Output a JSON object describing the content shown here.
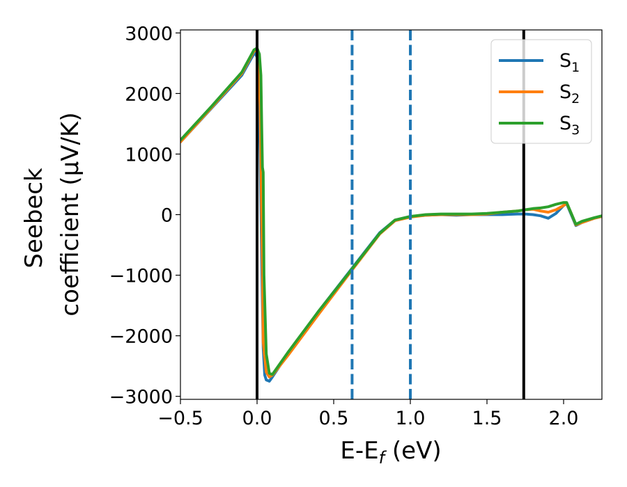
{
  "chart_data": {
    "type": "line",
    "xlabel": "E-E_f (eV)",
    "xlabel_parts": {
      "main": "E-E",
      "sub": "f",
      "rest": " (eV)"
    },
    "ylabel_lines": [
      "Seebeck",
      "coefficient  (μV/K)"
    ],
    "xlim": [
      -0.5,
      2.25
    ],
    "ylim": [
      -3050,
      3050
    ],
    "xticks": [
      -0.5,
      0.0,
      0.5,
      1.0,
      1.5,
      2.0
    ],
    "xtick_labels": [
      "−0.5",
      "0.0",
      "0.5",
      "1.0",
      "1.5",
      "2.0"
    ],
    "yticks": [
      -3000,
      -2000,
      -1000,
      0,
      1000,
      2000,
      3000
    ],
    "ytick_labels": [
      "−3000",
      "−2000",
      "−1000",
      "0",
      "1000",
      "2000",
      "3000"
    ],
    "legend_position": "top-right",
    "grid": false,
    "vlines": [
      {
        "x": 0.0,
        "color": "#000000",
        "style": "solid"
      },
      {
        "x": 0.62,
        "color": "#1f77b4",
        "style": "dashed"
      },
      {
        "x": 1.0,
        "color": "#1f77b4",
        "style": "dashed"
      },
      {
        "x": 1.74,
        "color": "#000000",
        "style": "solid"
      }
    ],
    "series": [
      {
        "name": "S",
        "name_sub": "1",
        "color": "#1f77b4",
        "x": [
          -0.5,
          -0.3,
          -0.1,
          -0.04,
          -0.015,
          0.0,
          0.01,
          0.02,
          0.03,
          0.04,
          0.05,
          0.06,
          0.08,
          0.1,
          0.2,
          0.4,
          0.6,
          0.8,
          0.9,
          1.0,
          1.1,
          1.2,
          1.3,
          1.4,
          1.5,
          1.6,
          1.7,
          1.75,
          1.8,
          1.85,
          1.9,
          1.95,
          2.0,
          2.02,
          2.05,
          2.08,
          2.12,
          2.2,
          2.25
        ],
        "y": [
          1200,
          1750,
          2300,
          2570,
          2680,
          2600,
          2200,
          1000,
          -700,
          -2200,
          -2650,
          -2730,
          -2750,
          -2680,
          -2300,
          -1600,
          -950,
          -300,
          -90,
          -30,
          -10,
          0,
          -10,
          0,
          0,
          0,
          10,
          10,
          0,
          -20,
          -60,
          20,
          150,
          180,
          0,
          -180,
          -130,
          -60,
          -30
        ]
      },
      {
        "name": "S",
        "name_sub": "2",
        "color": "#ff7f0e",
        "x": [
          -0.5,
          -0.3,
          -0.1,
          -0.02,
          0.0,
          0.01,
          0.02,
          0.03,
          0.035,
          0.04,
          0.06,
          0.08,
          0.1,
          0.2,
          0.4,
          0.6,
          0.8,
          0.9,
          1.0,
          1.1,
          1.2,
          1.3,
          1.4,
          1.5,
          1.6,
          1.7,
          1.75,
          1.8,
          1.85,
          1.9,
          1.95,
          2.0,
          2.02,
          2.05,
          2.08,
          2.12,
          2.2,
          2.25
        ],
        "y": [
          1200,
          1760,
          2330,
          2700,
          2720,
          2500,
          1800,
          0,
          -800,
          -2100,
          -2600,
          -2680,
          -2650,
          -2330,
          -1650,
          -980,
          -320,
          -100,
          -40,
          -10,
          0,
          0,
          0,
          10,
          40,
          60,
          80,
          90,
          60,
          40,
          80,
          150,
          190,
          20,
          -170,
          -130,
          -60,
          -30
        ]
      },
      {
        "name": "S",
        "name_sub": "3",
        "color": "#2ca02c",
        "x": [
          -0.5,
          -0.3,
          -0.1,
          -0.02,
          0.0,
          0.015,
          0.025,
          0.03,
          0.035,
          0.04,
          0.045,
          0.06,
          0.08,
          0.1,
          0.2,
          0.4,
          0.6,
          0.8,
          0.9,
          1.0,
          1.1,
          1.2,
          1.3,
          1.4,
          1.5,
          1.6,
          1.7,
          1.75,
          1.8,
          1.85,
          1.9,
          1.95,
          2.0,
          2.02,
          2.05,
          2.08,
          2.12,
          2.2,
          2.25
        ],
        "y": [
          1230,
          1780,
          2350,
          2720,
          2750,
          2650,
          2300,
          1500,
          780,
          700,
          -1000,
          -2300,
          -2620,
          -2640,
          -2280,
          -1600,
          -960,
          -310,
          -90,
          -30,
          0,
          10,
          10,
          10,
          20,
          40,
          60,
          80,
          100,
          110,
          130,
          170,
          200,
          200,
          20,
          -160,
          -110,
          -50,
          -20
        ]
      }
    ]
  }
}
